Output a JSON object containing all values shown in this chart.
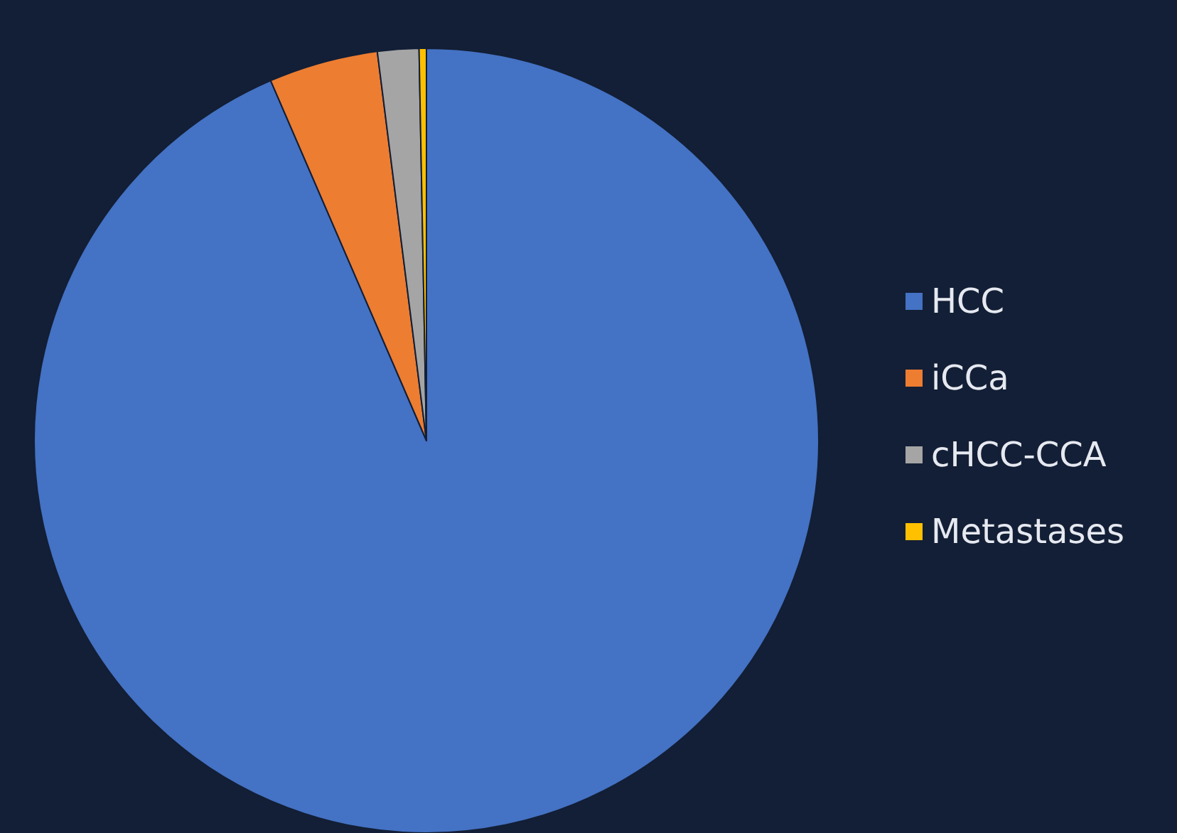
{
  "chart_data": {
    "type": "pie",
    "categories": [
      "HCC",
      "iCCa",
      "cHCC-CCA",
      "Metastases"
    ],
    "values": [
      93.5,
      4.5,
      1.7,
      0.3
    ],
    "colors": [
      "#4472c4",
      "#ed7d31",
      "#a5a5a5",
      "#ffc000"
    ],
    "legend": "right"
  }
}
